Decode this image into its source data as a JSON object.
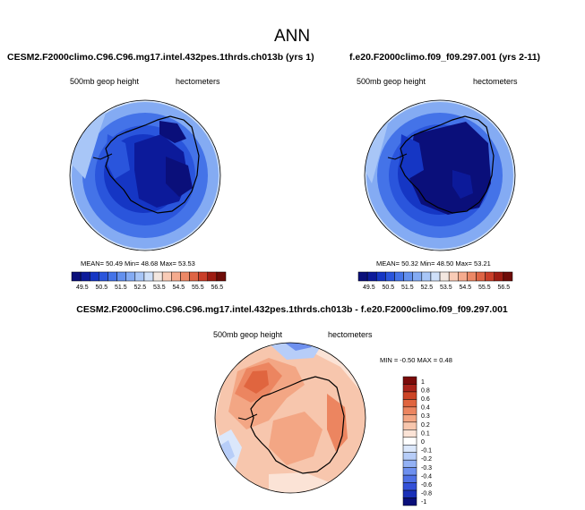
{
  "figure": {
    "title": "ANN",
    "panels": {
      "left": {
        "title": "CESM2.F2000climo.C96.C96.mg17.intel.432pes.1thrds.ch013b (yrs 1)",
        "variable": "500mb geop height",
        "units": "hectometers",
        "stats": "MEAN=  50.49  Min=  48.68  Max=  53.53"
      },
      "right": {
        "title": "f.e20.F2000climo.f09_f09.297.001 (yrs 2-11)",
        "variable": "500mb geop height",
        "units": "hectometers",
        "stats": "MEAN=  50.32  Min=  48.50  Max=  53.21"
      },
      "diff": {
        "title": "CESM2.F2000climo.C96.C96.mg17.intel.432pes.1thrds.ch013b - f.e20.F2000climo.f09_f09.297.001",
        "variable": "500mb geop height",
        "units": "hectometers",
        "stats": "MIN =  -0.50 MAX =   0.48"
      }
    }
  },
  "colors": {
    "abs_scale": [
      "#0a0f7a",
      "#0c1a9a",
      "#1536c4",
      "#2a55dc",
      "#4473e8",
      "#6390ee",
      "#84abf3",
      "#a8c6f7",
      "#cfe0f9",
      "#f3e7e0",
      "#f9cbb6",
      "#f5ab8e",
      "#ec8866",
      "#de6444",
      "#c93e28",
      "#9e1c12",
      "#6e0c08"
    ],
    "diff_scale": [
      "#0a0f7a",
      "#1a30b8",
      "#3350d8",
      "#4f71e6",
      "#6e90ef",
      "#93b1f4",
      "#b7cdf8",
      "#dbe7fb",
      "#ffffff",
      "#fbe3d6",
      "#f7c6ad",
      "#f3a684",
      "#ec8560",
      "#e0653f",
      "#cc4426",
      "#a9231a",
      "#7a0b0a"
    ]
  },
  "chart_data": [
    {
      "type": "heatmap",
      "projection": "south-polar-stereographic",
      "title": "CESM2.F2000climo.C96.C96.mg17.intel.432pes.1thrds.ch013b (yrs 1)",
      "variable": "500mb geop height",
      "units": "hectometers",
      "mean": 50.49,
      "min": 48.68,
      "max": 53.53,
      "colorbar_levels": [
        49.5,
        50,
        50.5,
        51,
        51.5,
        52,
        52.5,
        53,
        53.5,
        54,
        54.5,
        55,
        55.5,
        56,
        56.5
      ],
      "colorbar_labels": [
        "49.5",
        "50.5",
        "51.5",
        "52.5",
        "53.5",
        "54.5",
        "55.5",
        "56.5"
      ]
    },
    {
      "type": "heatmap",
      "projection": "south-polar-stereographic",
      "title": "f.e20.F2000climo.f09_f09.297.001 (yrs 2-11)",
      "variable": "500mb geop height",
      "units": "hectometers",
      "mean": 50.32,
      "min": 48.5,
      "max": 53.21,
      "colorbar_levels": [
        49.5,
        50,
        50.5,
        51,
        51.5,
        52,
        52.5,
        53,
        53.5,
        54,
        54.5,
        55,
        55.5,
        56,
        56.5
      ],
      "colorbar_labels": [
        "49.5",
        "50.5",
        "51.5",
        "52.5",
        "53.5",
        "54.5",
        "55.5",
        "56.5"
      ]
    },
    {
      "type": "heatmap",
      "projection": "south-polar-stereographic",
      "title": "CESM2.F2000climo.C96.C96.mg17.intel.432pes.1thrds.ch013b - f.e20.F2000climo.f09_f09.297.001",
      "variable": "500mb geop height",
      "units": "hectometers",
      "min": -0.5,
      "max": 0.48,
      "colorbar_labels": [
        "1",
        "0.8",
        "0.6",
        "0.4",
        "0.3",
        "0.2",
        "0.1",
        "0",
        "-0.1",
        "-0.2",
        "-0.3",
        "-0.4",
        "-0.6",
        "-0.8",
        "-1"
      ]
    }
  ]
}
